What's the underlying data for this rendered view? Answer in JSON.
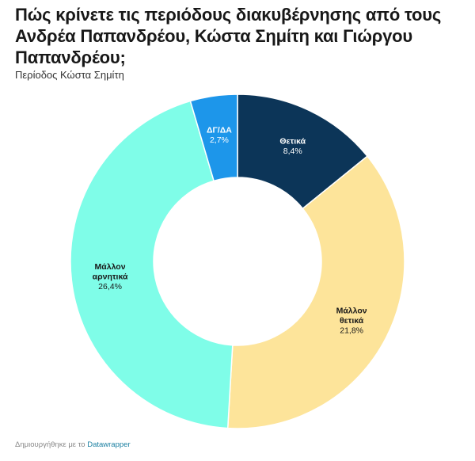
{
  "header": {
    "title": "Πώς κρίνετε τις περιόδους διακυβέρνησης από τους Ανδρέα Παπανδρέου, Κώστα Σημίτη και Γιώργου Παπανδρέου;",
    "subtitle": "Περίοδος Κώστα Σημίτη"
  },
  "footer": {
    "text": "Δημιουργήθηκε με το",
    "link": "Datawrapper"
  },
  "chart_data": {
    "type": "pie",
    "title": "Πώς κρίνετε τις περιόδους διακυβέρνησης από τους Ανδρέα Παπανδρέου, Κώστα Σημίτη και Γιώργου Παπανδρέου;",
    "subtitle": "Περίοδος Κώστα Σημίτη",
    "donut": true,
    "slices": [
      {
        "label": "Θετικά",
        "value": 8.4,
        "display": "8,4%",
        "color": "#0c3558",
        "text_color": "#ffffff"
      },
      {
        "label": "Μάλλον θετικά",
        "value": 21.8,
        "display": "21,8%",
        "color": "#fde49a",
        "text_color": "#181818"
      },
      {
        "label": "Μάλλον αρνητικά",
        "value": 26.4,
        "display": "26,4%",
        "color": "#7ffde8",
        "text_color": "#181818"
      },
      {
        "label": "ΔΓ/ΔΑ",
        "value": 2.7,
        "display": "2,7%",
        "color": "#1d96ea",
        "text_color": "#ffffff"
      }
    ]
  }
}
